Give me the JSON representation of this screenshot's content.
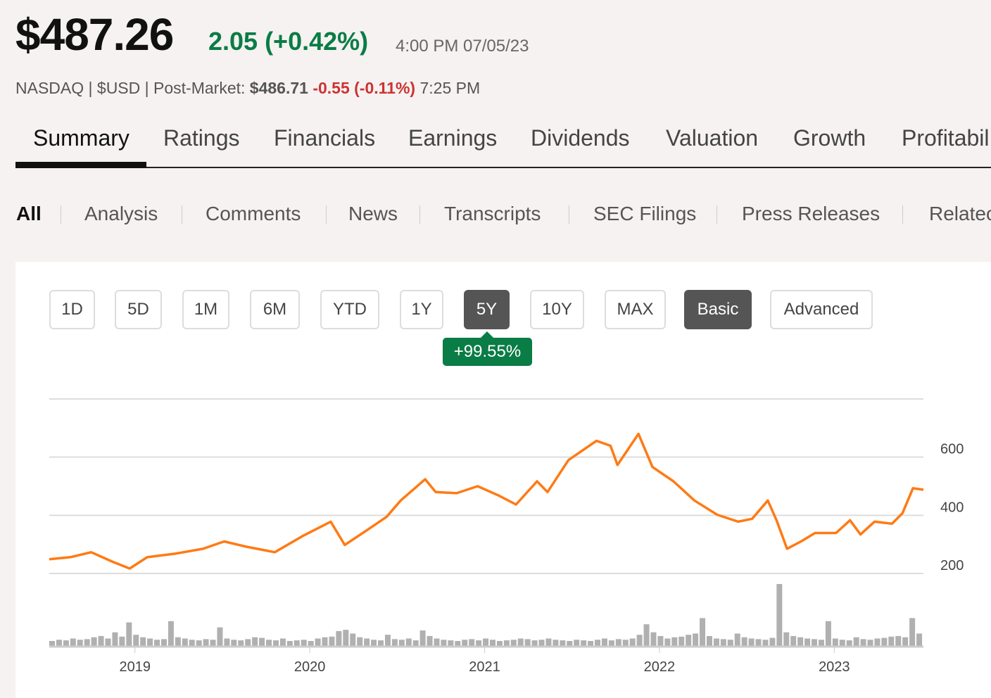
{
  "quote": {
    "price": "$487.26",
    "change": "2.05 (+0.42%)",
    "time": "4:00 PM 07/05/23",
    "exchange": "NASDAQ",
    "currency": "$USD",
    "post_label": "Post-Market:",
    "post_price": "$486.71",
    "post_change": "-0.55 (-0.11%)",
    "post_time": "7:25 PM",
    "sep": "|"
  },
  "tabs": [
    "Summary",
    "Ratings",
    "Financials",
    "Earnings",
    "Dividends",
    "Valuation",
    "Growth",
    "Profitabil"
  ],
  "subnav": [
    "All",
    "Analysis",
    "Comments",
    "News",
    "Transcripts",
    "SEC Filings",
    "Press Releases",
    "Relatec"
  ],
  "ranges": [
    "1D",
    "5D",
    "1M",
    "6M",
    "YTD",
    "1Y",
    "5Y",
    "10Y",
    "MAX"
  ],
  "modes": [
    "Basic",
    "Advanced"
  ],
  "selected_range": "5Y",
  "range_change": "+99.55%",
  "colors": {
    "up": "#0a7c45",
    "down": "#cc3333",
    "line": "#ff7a14",
    "volume": "#b0b0b0"
  },
  "chart_data": {
    "type": "line",
    "title": "",
    "xlabel": "",
    "ylabel": "",
    "x_ticks": [
      "2019",
      "2020",
      "2021",
      "2022",
      "2023"
    ],
    "y_ticks": [
      "200",
      "400",
      "600"
    ],
    "ylim": [
      200,
      800
    ],
    "xlim": [
      2018.51,
      2023.51
    ],
    "grid": true,
    "series": [
      {
        "name": "Price",
        "x": [
          2018.51,
          2018.63,
          2018.75,
          2018.87,
          2018.97,
          2019.07,
          2019.23,
          2019.39,
          2019.51,
          2019.63,
          2019.8,
          2019.96,
          2020.12,
          2020.2,
          2020.32,
          2020.44,
          2020.52,
          2020.66,
          2020.72,
          2020.84,
          2020.96,
          2021.08,
          2021.18,
          2021.3,
          2021.36,
          2021.48,
          2021.64,
          2021.72,
          2021.76,
          2021.88,
          2021.96,
          2022.08,
          2022.2,
          2022.33,
          2022.45,
          2022.53,
          2022.62,
          2022.67,
          2022.73,
          2022.81,
          2022.89,
          2023.01,
          2023.09,
          2023.15,
          2023.23,
          2023.33,
          2023.39,
          2023.45,
          2023.51
        ],
        "y": [
          249,
          256,
          273,
          241,
          217,
          256,
          268,
          285,
          310,
          293,
          273,
          329,
          378,
          298,
          346,
          395,
          451,
          524,
          480,
          476,
          500,
          468,
          437,
          517,
          480,
          590,
          656,
          639,
          573,
          680,
          566,
          517,
          451,
          402,
          378,
          388,
          451,
          383,
          285,
          310,
          339,
          339,
          383,
          334,
          378,
          371,
          407,
          493,
          488
        ]
      }
    ],
    "volume": {
      "name": "Volume (relative)",
      "values": [
        8,
        10,
        9,
        12,
        10,
        11,
        14,
        16,
        12,
        22,
        15,
        38,
        18,
        14,
        12,
        10,
        11,
        40,
        14,
        12,
        10,
        9,
        11,
        10,
        30,
        12,
        10,
        9,
        11,
        14,
        13,
        10,
        9,
        12,
        8,
        9,
        10,
        8,
        12,
        14,
        15,
        24,
        26,
        20,
        14,
        12,
        10,
        9,
        18,
        11,
        10,
        12,
        9,
        25,
        16,
        12,
        10,
        9,
        8,
        10,
        11,
        9,
        12,
        10,
        8,
        9,
        10,
        12,
        11,
        9,
        10,
        12,
        10,
        9,
        8,
        10,
        9,
        8,
        10,
        12,
        9,
        11,
        10,
        12,
        18,
        35,
        22,
        16,
        12,
        14,
        15,
        18,
        20,
        45,
        16,
        12,
        11,
        10,
        20,
        14,
        12,
        11,
        10,
        13,
        100,
        22,
        16,
        14,
        12,
        11,
        10,
        40,
        12,
        10,
        9,
        14,
        11,
        10,
        12,
        13,
        15,
        16,
        14,
        45,
        20
      ]
    }
  }
}
